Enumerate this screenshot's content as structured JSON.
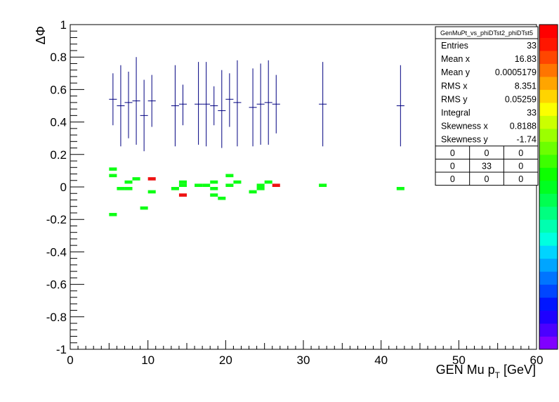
{
  "chart_data": {
    "type": "heatmap",
    "title": "",
    "xlabel_main": "GEN Mu p",
    "xlabel_sub": "T",
    "xlabel_unit": " [GeV]",
    "ylabel": "ΔΦ",
    "xlim": [
      0,
      60
    ],
    "ylim": [
      -1,
      1
    ],
    "x_ticks": [
      "0",
      "10",
      "20",
      "30",
      "40",
      "50",
      "60"
    ],
    "y_ticks": [
      "-1",
      "-0.8",
      "-0.6",
      "-0.4",
      "-0.2",
      "0",
      "0.2",
      "0.4",
      "0.6",
      "0.8",
      "1"
    ],
    "grid": false,
    "bin_width_x": 1,
    "bin_height_y": 0.02,
    "cells": [
      {
        "x": 5.5,
        "y": 0.11,
        "level": "low"
      },
      {
        "x": 5.5,
        "y": 0.07,
        "level": "low"
      },
      {
        "x": 5.5,
        "y": -0.17,
        "level": "low"
      },
      {
        "x": 6.5,
        "y": -0.01,
        "level": "low"
      },
      {
        "x": 7.5,
        "y": -0.01,
        "level": "low"
      },
      {
        "x": 7.5,
        "y": 0.03,
        "level": "low"
      },
      {
        "x": 8.5,
        "y": 0.05,
        "level": "low"
      },
      {
        "x": 9.5,
        "y": -0.13,
        "level": "low"
      },
      {
        "x": 10.5,
        "y": 0.05,
        "level": "high"
      },
      {
        "x": 10.5,
        "y": -0.03,
        "level": "low"
      },
      {
        "x": 13.5,
        "y": -0.01,
        "level": "low"
      },
      {
        "x": 14.5,
        "y": 0.03,
        "level": "low"
      },
      {
        "x": 14.5,
        "y": 0.01,
        "level": "low"
      },
      {
        "x": 14.5,
        "y": -0.05,
        "level": "high"
      },
      {
        "x": 16.5,
        "y": 0.01,
        "level": "low"
      },
      {
        "x": 17.5,
        "y": 0.01,
        "level": "low"
      },
      {
        "x": 18.5,
        "y": 0.03,
        "level": "low"
      },
      {
        "x": 18.5,
        "y": -0.01,
        "level": "low"
      },
      {
        "x": 18.5,
        "y": -0.05,
        "level": "low"
      },
      {
        "x": 19.5,
        "y": -0.07,
        "level": "low"
      },
      {
        "x": 20.5,
        "y": 0.07,
        "level": "low"
      },
      {
        "x": 20.5,
        "y": 0.01,
        "level": "low"
      },
      {
        "x": 21.5,
        "y": 0.03,
        "level": "low"
      },
      {
        "x": 23.5,
        "y": -0.03,
        "level": "low"
      },
      {
        "x": 24.5,
        "y": 0.01,
        "level": "low"
      },
      {
        "x": 24.5,
        "y": -0.01,
        "level": "low"
      },
      {
        "x": 25.5,
        "y": 0.03,
        "level": "low"
      },
      {
        "x": 26.5,
        "y": 0.01,
        "level": "high"
      },
      {
        "x": 32.5,
        "y": 0.01,
        "level": "low"
      },
      {
        "x": 42.5,
        "y": -0.01,
        "level": "low"
      }
    ],
    "profile_points": [
      {
        "x": 5.5,
        "mean": 0.54,
        "low": 0.38,
        "high": 0.7
      },
      {
        "x": 6.5,
        "mean": 0.5,
        "low": 0.25,
        "high": 0.75
      },
      {
        "x": 7.5,
        "mean": 0.52,
        "low": 0.3,
        "high": 0.71
      },
      {
        "x": 8.5,
        "mean": 0.53,
        "low": 0.26,
        "high": 0.8
      },
      {
        "x": 9.5,
        "mean": 0.44,
        "low": 0.22,
        "high": 0.66
      },
      {
        "x": 10.5,
        "mean": 0.53,
        "low": 0.37,
        "high": 0.69
      },
      {
        "x": 13.5,
        "mean": 0.5,
        "low": 0.25,
        "high": 0.75
      },
      {
        "x": 14.5,
        "mean": 0.51,
        "low": 0.38,
        "high": 0.63
      },
      {
        "x": 16.5,
        "mean": 0.51,
        "low": 0.26,
        "high": 0.77
      },
      {
        "x": 17.5,
        "mean": 0.51,
        "low": 0.25,
        "high": 0.77
      },
      {
        "x": 18.5,
        "mean": 0.5,
        "low": 0.38,
        "high": 0.62
      },
      {
        "x": 19.5,
        "mean": 0.47,
        "low": 0.24,
        "high": 0.72
      },
      {
        "x": 20.5,
        "mean": 0.54,
        "low": 0.37,
        "high": 0.7
      },
      {
        "x": 21.5,
        "mean": 0.52,
        "low": 0.25,
        "high": 0.78
      },
      {
        "x": 23.5,
        "mean": 0.49,
        "low": 0.25,
        "high": 0.73
      },
      {
        "x": 24.5,
        "mean": 0.51,
        "low": 0.26,
        "high": 0.76
      },
      {
        "x": 25.5,
        "mean": 0.52,
        "low": 0.26,
        "high": 0.78
      },
      {
        "x": 26.5,
        "mean": 0.51,
        "low": 0.33,
        "high": 0.69
      },
      {
        "x": 32.5,
        "mean": 0.51,
        "low": 0.25,
        "high": 0.77
      },
      {
        "x": 42.5,
        "mean": 0.5,
        "low": 0.25,
        "high": 0.75
      }
    ],
    "colors": {
      "low": "#0dff14",
      "high": "#ee1111",
      "profile": "#000080"
    },
    "palette": [
      "#8000ff",
      "#4b00ff",
      "#1e00ff",
      "#0016ff",
      "#0046ff",
      "#0075ff",
      "#00a5ff",
      "#00d4ff",
      "#00ffe0",
      "#00ffb0",
      "#00ff80",
      "#00ff51",
      "#00ff21",
      "#0dff00",
      "#3dff00",
      "#6cff00",
      "#9cff00",
      "#cbff00",
      "#fbff00",
      "#ffd400",
      "#ffa500",
      "#ff7500",
      "#ff4600",
      "#ff1600",
      "#ff0000"
    ],
    "stats": {
      "title": "GenMuPt_vs_phiDTst2_phiDTst5",
      "rows": [
        {
          "label": "Entries",
          "value": "33"
        },
        {
          "label": "Mean x",
          "value": "16.83"
        },
        {
          "label": "Mean y",
          "value": "0.0005179"
        },
        {
          "label": "RMS x",
          "value": "8.351"
        },
        {
          "label": "RMS y",
          "value": "0.05259"
        },
        {
          "label": "Integral",
          "value": "33"
        },
        {
          "label": "Skewness x",
          "value": "0.8188"
        },
        {
          "label": "Skewness y",
          "value": "-1.74"
        }
      ],
      "grid": [
        [
          "0",
          "0",
          "0"
        ],
        [
          "0",
          "33",
          "0"
        ],
        [
          "0",
          "0",
          "0"
        ]
      ]
    }
  }
}
